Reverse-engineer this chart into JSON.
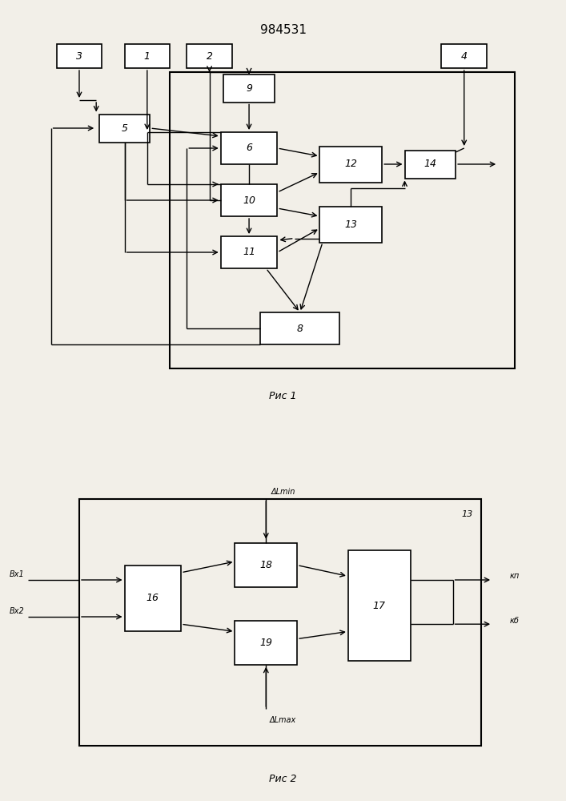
{
  "title": "984531",
  "bg_color": "#f2efe8",
  "fig1_caption": "Рис 1",
  "fig2_caption": "Рис 2"
}
